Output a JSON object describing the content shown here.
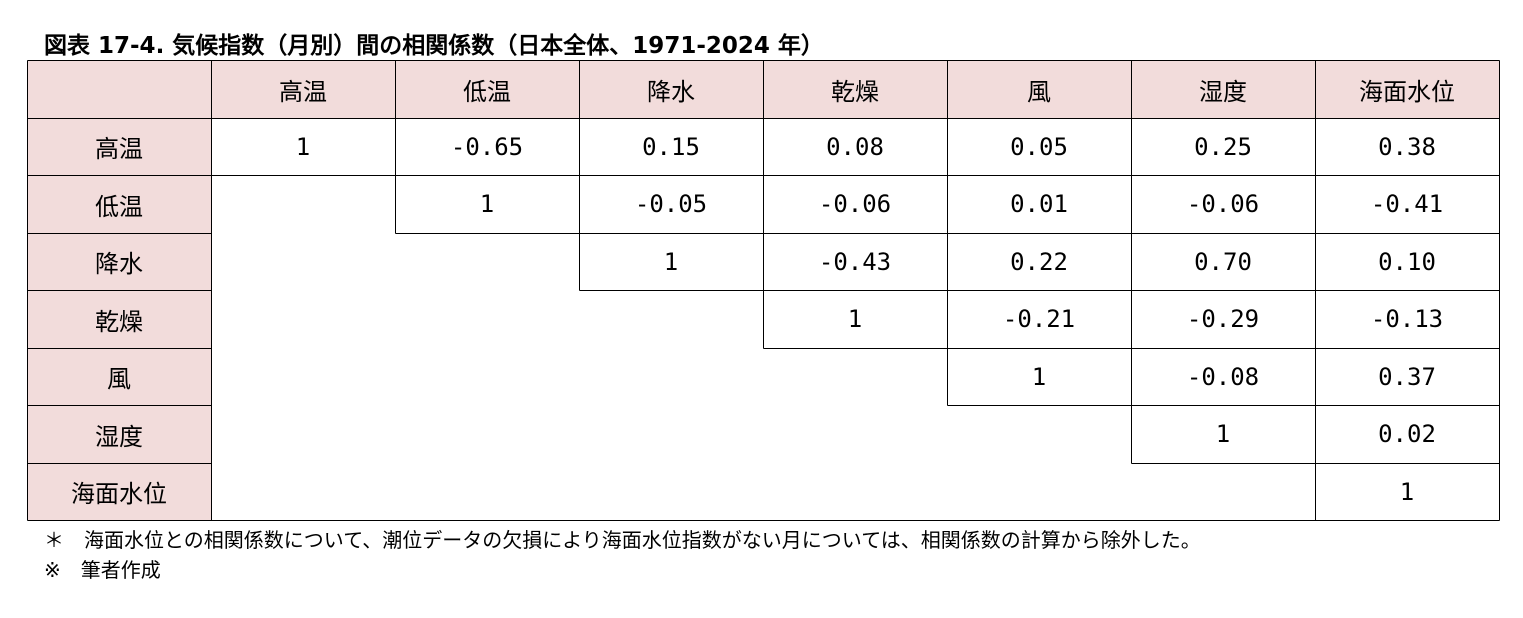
{
  "title": "図表 17-4. 気候指数（月別）間の相関係数（日本全体、1971-2024 年）",
  "table": {
    "corner": "",
    "columns": [
      "高温",
      "低温",
      "降水",
      "乾燥",
      "風",
      "湿度",
      "海面水位"
    ],
    "rows": [
      {
        "label": "高温",
        "cells": [
          "1",
          "-0.65",
          "0.15",
          "0.08",
          "0.05",
          "0.25",
          "0.38"
        ]
      },
      {
        "label": "低温",
        "cells": [
          "",
          "1",
          "-0.05",
          "-0.06",
          "0.01",
          "-0.06",
          "-0.41"
        ]
      },
      {
        "label": "降水",
        "cells": [
          "",
          "",
          "1",
          "-0.43",
          "0.22",
          "0.70",
          "0.10"
        ]
      },
      {
        "label": "乾燥",
        "cells": [
          "",
          "",
          "",
          "1",
          "-0.21",
          "-0.29",
          "-0.13"
        ]
      },
      {
        "label": "風",
        "cells": [
          "",
          "",
          "",
          "",
          "1",
          "-0.08",
          "0.37"
        ]
      },
      {
        "label": "湿度",
        "cells": [
          "",
          "",
          "",
          "",
          "",
          "1",
          "0.02"
        ]
      },
      {
        "label": "海面水位",
        "cells": [
          "",
          "",
          "",
          "",
          "",
          "",
          "1"
        ]
      }
    ]
  },
  "notes": [
    "＊　海面水位との相関係数について、潮位データの欠損により海面水位指数がない月については、相関係数の計算から除外した。",
    "※　筆者作成"
  ],
  "colors": {
    "header_fill": "#f2dcdb",
    "border": "#000000"
  }
}
